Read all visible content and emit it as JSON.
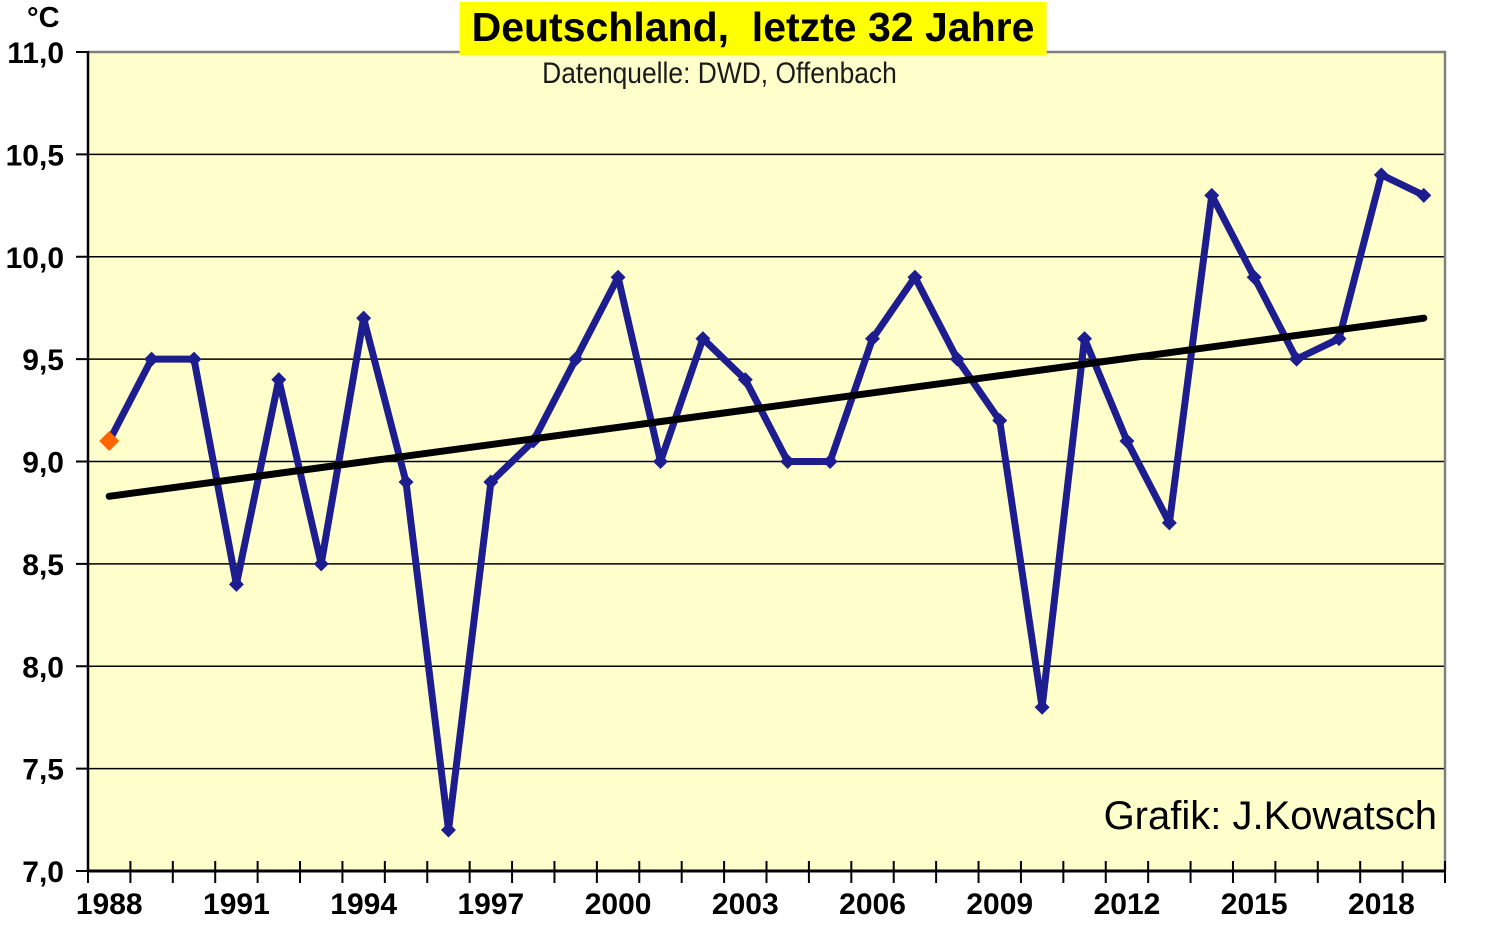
{
  "page": {
    "background": "#FFFFFF"
  },
  "chart_data": {
    "type": "line",
    "title": "Deutschland,  letzte 32 Jahre",
    "title_highlight_color": "#FFFF00",
    "subtitle": "Datenquelle: DWD, Offenbach",
    "credit": "Grafik: J.Kowatsch",
    "unit_label": "°C",
    "plot_background": "#FFFFCC",
    "grid": "horizontal",
    "legend": "none",
    "ylim": [
      7.0,
      11.0
    ],
    "ytick_step": 0.5,
    "ytick_values": [
      7.0,
      7.5,
      8.0,
      8.5,
      9.0,
      9.5,
      10.0,
      10.5,
      11.0
    ],
    "ytick_labels": [
      "7,0",
      "7,5",
      "8,0",
      "8,5",
      "9,0",
      "9,5",
      "10,0",
      "10,5",
      "11,0"
    ],
    "x": [
      1988,
      1989,
      1990,
      1991,
      1992,
      1993,
      1994,
      1995,
      1996,
      1997,
      1998,
      1999,
      2000,
      2001,
      2002,
      2003,
      2004,
      2005,
      2006,
      2007,
      2008,
      2009,
      2010,
      2011,
      2012,
      2013,
      2014,
      2015,
      2016,
      2017,
      2018,
      2019
    ],
    "xtick_label_years": [
      1988,
      1991,
      1994,
      1997,
      2000,
      2003,
      2006,
      2009,
      2012,
      2015,
      2018
    ],
    "series": [
      {
        "type": "line",
        "color": "#1D1D8F",
        "marker": "diamond",
        "first_marker_color": "#FF6600",
        "values": [
          9.1,
          9.5,
          9.5,
          8.4,
          9.4,
          8.5,
          9.7,
          8.9,
          7.2,
          8.9,
          9.1,
          9.5,
          9.9,
          9.0,
          9.6,
          9.4,
          9.0,
          9.0,
          9.6,
          9.9,
          9.5,
          9.2,
          7.8,
          9.6,
          9.1,
          8.7,
          10.3,
          9.9,
          9.5,
          9.6,
          10.4,
          10.3
        ]
      },
      {
        "type": "trend",
        "color": "#000000",
        "start_value": 8.83,
        "end_value": 9.7
      }
    ],
    "axis_color": "#000000",
    "border_color": "#808080",
    "gridline_color": "#000000"
  }
}
